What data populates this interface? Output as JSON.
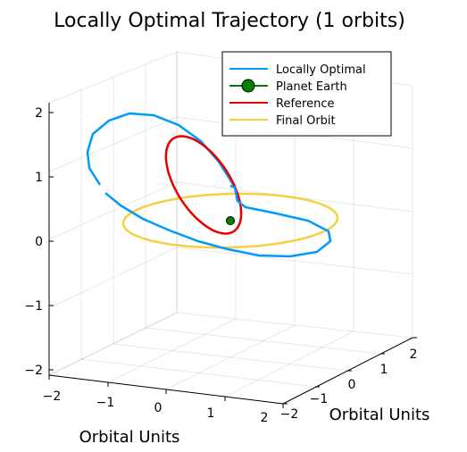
{
  "chart_data": {
    "type": "line3d",
    "title": "Locally Optimal Trajectory (1 orbits)",
    "xlabel": "Orbital Units",
    "ylabel": "Orbital Units",
    "zlabel": "",
    "x_ticks": [
      "−2",
      "−1",
      "0",
      "1",
      "2"
    ],
    "y_ticks": [
      "−2",
      "−1",
      "0",
      "1",
      "2"
    ],
    "z_ticks": [
      "−2",
      "−1",
      "0",
      "1",
      "2"
    ],
    "xlim": [
      -2,
      2
    ],
    "ylim": [
      -2,
      2
    ],
    "zlim": [
      -2,
      2
    ],
    "grid": true,
    "legend_position": "top-right",
    "series": [
      {
        "name": "Locally Optimal",
        "color": "#009AFA",
        "kind": "line"
      },
      {
        "name": "Planet Earth",
        "color": "#008000",
        "kind": "marker"
      },
      {
        "name": "Reference",
        "color": "#E80000",
        "kind": "line"
      },
      {
        "name": "Final Orbit",
        "color": "#F5D040",
        "kind": "line"
      }
    ]
  }
}
